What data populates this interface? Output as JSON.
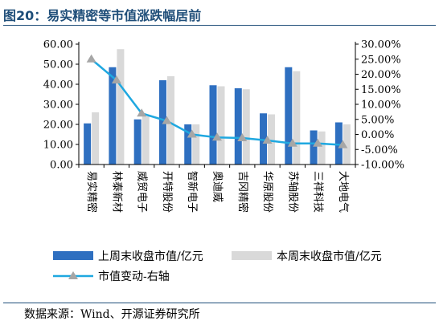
{
  "title": "图20：易实精密等市值涨跌幅居前",
  "source": "数据来源：Wind、开源证券研究所",
  "chart_data": {
    "type": "bar",
    "categories": [
      "易实精密",
      "林泰新材",
      "威贸电子",
      "开特股份",
      "智新电子",
      "奥迪威",
      "吉冈精密",
      "华原股份",
      "苏轴股份",
      "三祥科技",
      "大地电气"
    ],
    "series": [
      {
        "name": "上周末收盘市值/亿元",
        "axis": "left",
        "kind": "bar",
        "color": "#2e6fc0",
        "values": [
          20.5,
          48.5,
          22.5,
          42.0,
          20.0,
          39.5,
          38.0,
          25.5,
          48.5,
          17.0,
          21.0
        ]
      },
      {
        "name": "本周末收盘市值/亿元",
        "axis": "left",
        "kind": "bar",
        "color": "#d9d9d9",
        "values": [
          26.0,
          57.5,
          24.0,
          44.0,
          20.0,
          39.0,
          37.5,
          25.0,
          46.5,
          16.5,
          20.0
        ]
      },
      {
        "name": "市值变动-右轴",
        "axis": "right",
        "kind": "line",
        "color": "#1fa8e0",
        "marker_color": "#a6a6a6",
        "values": [
          25.0,
          18.0,
          7.0,
          4.5,
          0.0,
          -1.0,
          -1.2,
          -2.0,
          -3.0,
          -3.0,
          -3.5
        ]
      }
    ],
    "left_axis": {
      "min": 0,
      "max": 60,
      "step": 10,
      "ticks": [
        "0.00",
        "10.00",
        "20.00",
        "30.00",
        "40.00",
        "50.00",
        "60.00"
      ]
    },
    "right_axis": {
      "min": -10,
      "max": 30,
      "step": 5,
      "ticks": [
        "-10.00%",
        "-5.00%",
        "0.00%",
        "5.00%",
        "10.00%",
        "15.00%",
        "20.00%",
        "25.00%",
        "30.00%"
      ]
    },
    "legend_position": "bottom",
    "grid": false
  }
}
